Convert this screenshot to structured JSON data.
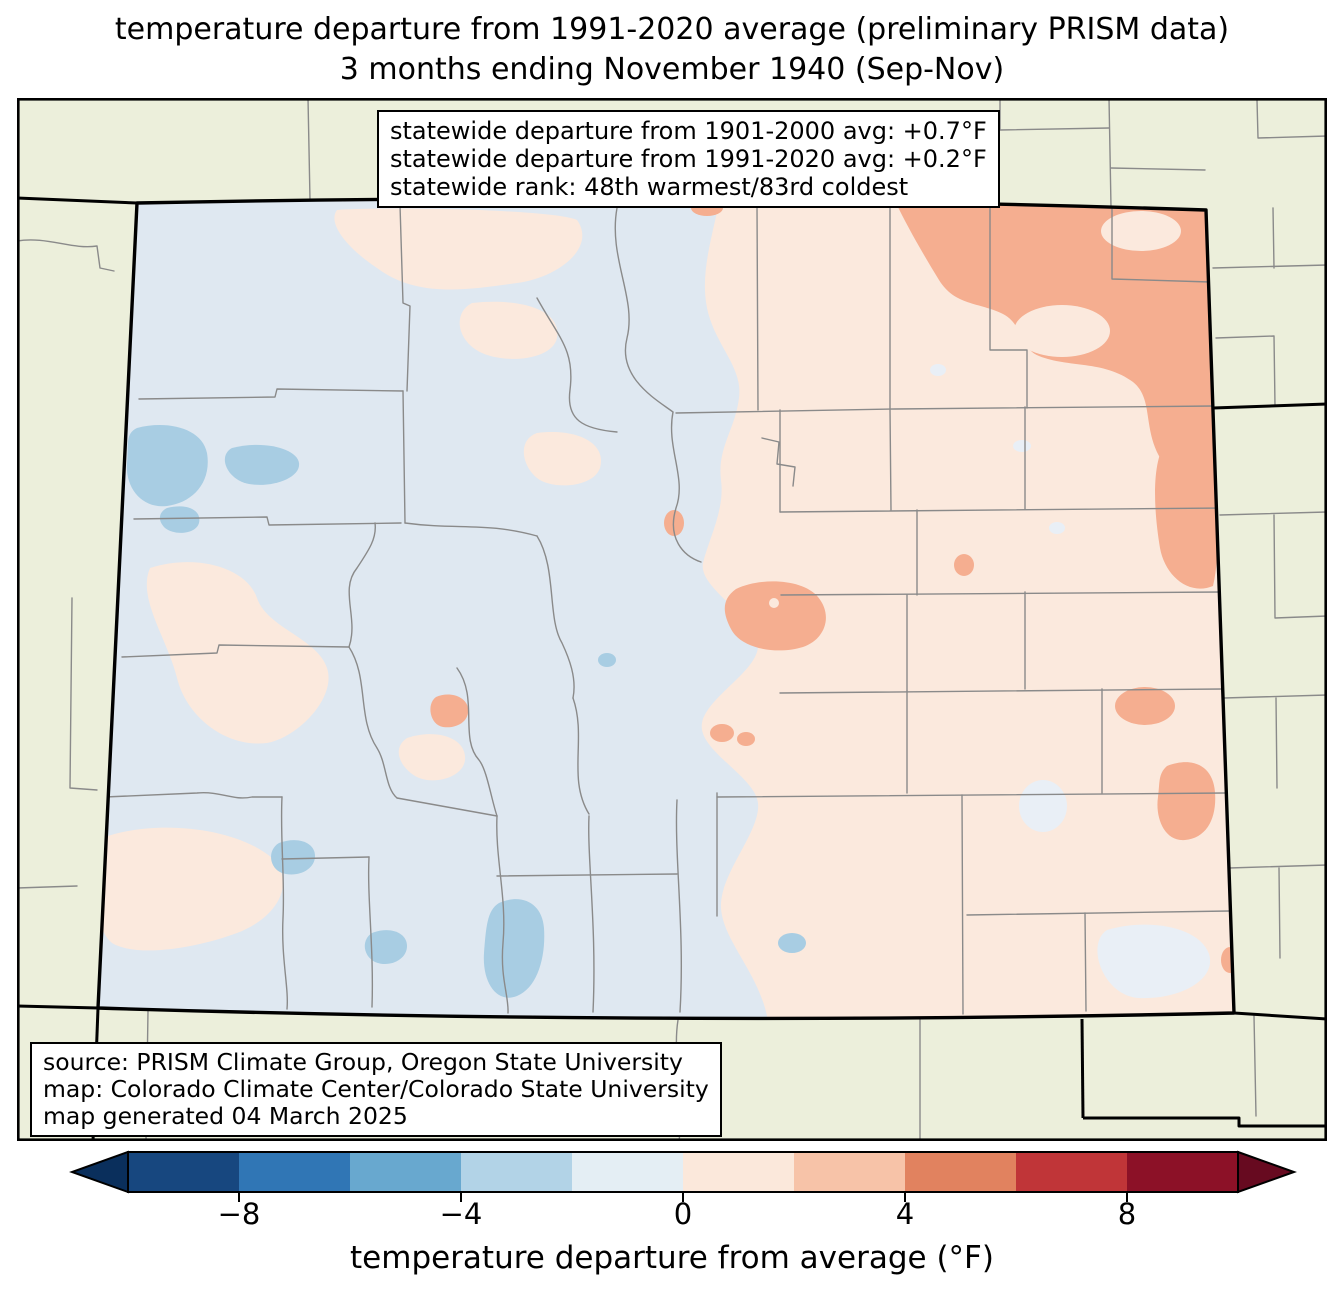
{
  "title": {
    "line1": "temperature departure from 1991-2020 average (preliminary PRISM data)",
    "line2": "3 months ending November 1940 (Sep-Nov)"
  },
  "stats_box": {
    "lines": [
      "statewide departure from 1901-2000 avg: +0.7°F",
      "statewide departure from 1991-2020 avg: +0.2°F",
      "statewide rank: 48th warmest/83rd coldest"
    ]
  },
  "source_box": {
    "lines": [
      "source: PRISM Climate Group, Oregon State University",
      "map: Colorado Climate Center/Colorado State University",
      "map generated 04 March 2025"
    ]
  },
  "colorbar": {
    "label": "temperature departure from average (°F)",
    "tick_labels": [
      "−8",
      "−4",
      "0",
      "4",
      "8"
    ],
    "tick_values": [
      -8,
      -4,
      0,
      4,
      8
    ],
    "range_min": -10,
    "range_max": 10,
    "segment_colors": [
      "#17477f",
      "#3076b5",
      "#68a8cf",
      "#b2d3e7",
      "#e4eef4",
      "#fbe8db",
      "#f7c3a8",
      "#e1825f",
      "#c03538",
      "#8c1127"
    ],
    "under_arrow_color": "#0a2f5c",
    "over_arrow_color": "#670a20"
  },
  "map": {
    "region": "Colorado with county boundaries and surrounding states",
    "colors": {
      "outside_land": "#ecefdb",
      "cool_base": "#dfe8f1",
      "cool_pale": "#e9eff6",
      "cool_blob": "#a8cde3",
      "warm_base": "#fbe9dd",
      "warm_blob": "#f5ae90",
      "county_line": "#8a8a8a",
      "state_line": "#000000"
    }
  }
}
